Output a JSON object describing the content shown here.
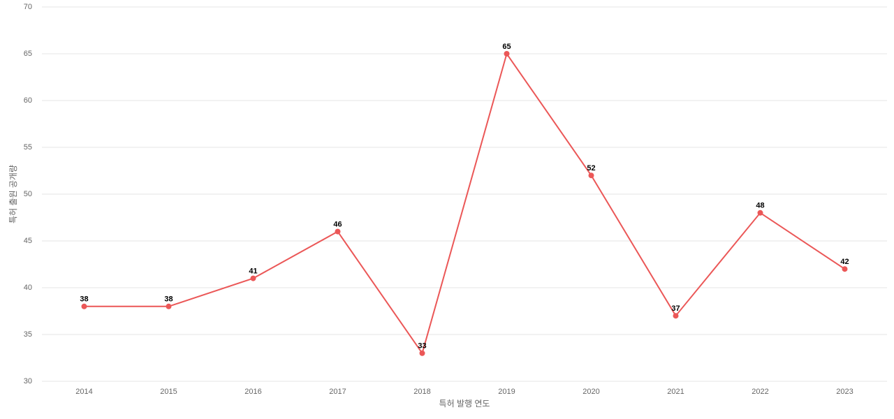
{
  "chart_data": {
    "type": "line",
    "x_label": "특허 발행 연도",
    "y_label": "특허 출원 공개량",
    "categories": [
      "2014",
      "2015",
      "2016",
      "2017",
      "2018",
      "2019",
      "2020",
      "2021",
      "2022",
      "2023"
    ],
    "values": [
      38,
      38,
      41,
      46,
      33,
      65,
      52,
      37,
      48,
      42
    ],
    "color": "#eb5757",
    "ylim": [
      30,
      70
    ],
    "yticks": [
      30,
      35,
      40,
      45,
      50,
      55,
      60,
      65,
      70
    ],
    "grid": true
  }
}
